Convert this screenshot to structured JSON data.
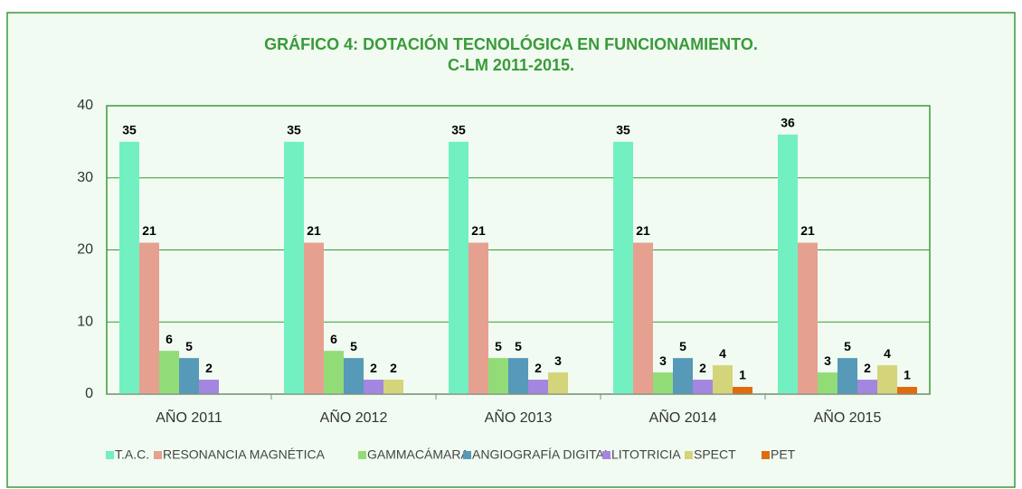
{
  "chart_data": {
    "type": "bar",
    "title": [
      "GRÁFICO 4: DOTACIÓN TECNOLÓGICA EN FUNCIONAMIENTO.",
      "C-LM 2011-2015."
    ],
    "categories": [
      "AÑO 2011",
      "AÑO 2012",
      "AÑO 2013",
      "AÑO 2014",
      "AÑO 2015"
    ],
    "series": [
      {
        "name": "T.A.C.",
        "color": "#72f0c2",
        "values": [
          35,
          35,
          35,
          35,
          36
        ]
      },
      {
        "name": "RESONANCIA MAGNÉTICA",
        "color": "#e6a090",
        "values": [
          21,
          21,
          21,
          21,
          21
        ]
      },
      {
        "name": "GAMMACÁMARA",
        "color": "#92dc78",
        "values": [
          6,
          6,
          5,
          3,
          3
        ]
      },
      {
        "name": "ANGIOGRAFÍA DIGITAL",
        "color": "#5699b8",
        "values": [
          5,
          5,
          5,
          5,
          5
        ]
      },
      {
        "name": "LITOTRICIA",
        "color": "#a386e0",
        "values": [
          2,
          2,
          2,
          2,
          2
        ]
      },
      {
        "name": "SPECT",
        "color": "#d4d47a",
        "values": [
          null,
          2,
          3,
          4,
          4
        ]
      },
      {
        "name": "PET",
        "color": "#e06c10",
        "values": [
          null,
          null,
          null,
          1,
          1
        ]
      }
    ],
    "ylim": [
      0,
      40
    ],
    "yticks": [
      0,
      10,
      20,
      30,
      40
    ],
    "grid": true,
    "legend": "bottom"
  }
}
